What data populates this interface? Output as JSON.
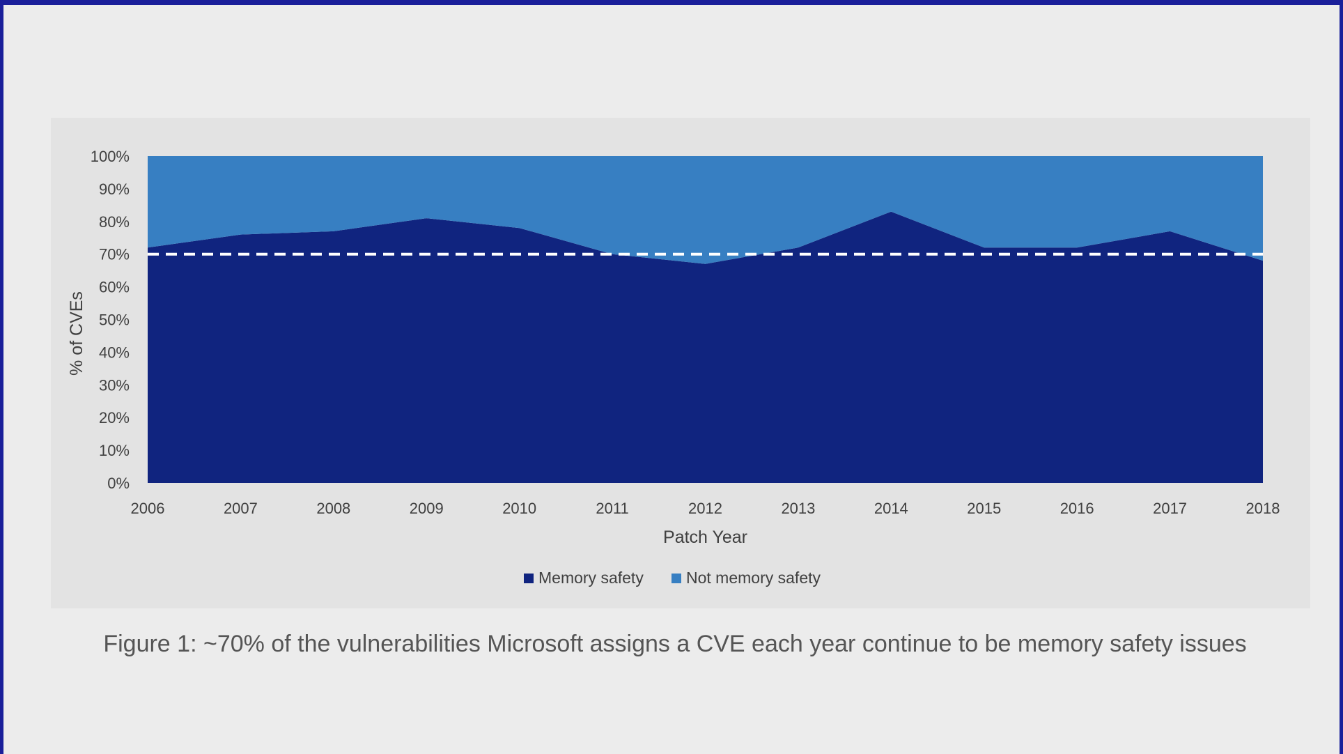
{
  "caption": "Figure 1: ~70% of the vulnerabilities Microsoft assigns a CVE each year continue to be memory safety issues",
  "colors": {
    "memory_safety": "#10247f",
    "not_memory_safety": "#377fc2",
    "reference_line": "#ffffff"
  },
  "chart_data": {
    "type": "area",
    "stacked": true,
    "xlabel": "Patch Year",
    "ylabel": "% of CVEs",
    "x": [
      2006,
      2007,
      2008,
      2009,
      2010,
      2011,
      2012,
      2013,
      2014,
      2015,
      2016,
      2017,
      2018
    ],
    "ylim": [
      0,
      100
    ],
    "yticks": [
      "0%",
      "10%",
      "20%",
      "30%",
      "40%",
      "50%",
      "60%",
      "70%",
      "80%",
      "90%",
      "100%"
    ],
    "series": [
      {
        "name": "Memory safety",
        "values": [
          72,
          76,
          77,
          81,
          78,
          70,
          67,
          72,
          83,
          72,
          72,
          77,
          68
        ]
      },
      {
        "name": "Not memory safety",
        "values": [
          28,
          24,
          23,
          19,
          22,
          30,
          33,
          28,
          17,
          28,
          28,
          23,
          32
        ]
      }
    ],
    "reference_line": {
      "y": 70,
      "style": "dashed"
    },
    "legend": {
      "position": "bottom"
    },
    "grid": false
  }
}
